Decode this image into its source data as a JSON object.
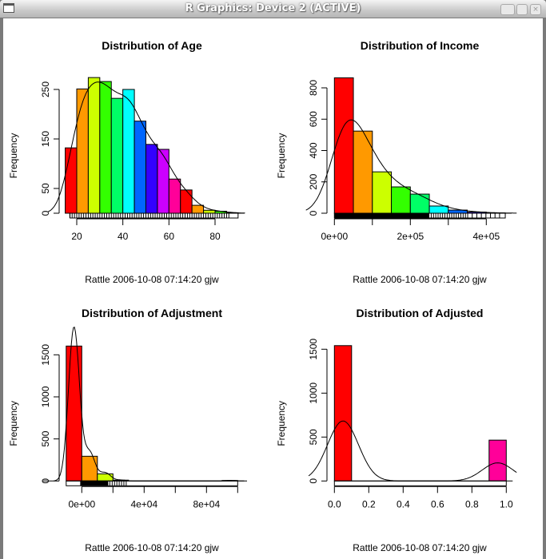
{
  "window": {
    "title": "R Graphics: Device 2 (ACTIVE)"
  },
  "footer": "Rattle 2006-10-08 07:14:20 gjw",
  "palette": [
    "#FF0000",
    "#FF9900",
    "#CCFF00",
    "#33FF00",
    "#00FF66",
    "#00FFFF",
    "#0066FF",
    "#3300FF",
    "#CC00FF",
    "#FF0099"
  ],
  "chart_data": [
    {
      "type": "bar",
      "title": "Distribution of Age",
      "ylabel": "Frequency",
      "xlabel": "",
      "bin_edges": [
        15,
        20,
        25,
        30,
        35,
        40,
        45,
        50,
        55,
        60,
        65,
        70,
        75,
        80,
        85,
        90
      ],
      "values": [
        132,
        251,
        274,
        266,
        232,
        250,
        186,
        139,
        129,
        69,
        47,
        16,
        6,
        4,
        1
      ],
      "xticks": [
        20,
        40,
        60,
        80
      ],
      "xtick_labels": [
        "20",
        "40",
        "60",
        "80"
      ],
      "yticks": [
        0,
        50,
        150,
        250
      ],
      "ytick_labels": [
        "0",
        "50",
        "150",
        "250"
      ],
      "ylim": [
        0,
        280
      ],
      "density_curve": true,
      "rug": true
    },
    {
      "type": "bar",
      "title": "Distribution of Income",
      "ylabel": "Frequency",
      "xlabel": "",
      "bin_edges": [
        0,
        50000,
        100000,
        150000,
        200000,
        250000,
        300000,
        350000,
        400000,
        450000
      ],
      "values": [
        864,
        524,
        264,
        168,
        122,
        46,
        20,
        7,
        2
      ],
      "xticks": [
        0,
        100000,
        200000,
        300000,
        400000
      ],
      "xtick_labels": [
        "0e+00",
        "",
        "2e+05",
        "",
        "4e+05"
      ],
      "yticks": [
        0,
        200,
        400,
        600,
        800
      ],
      "ytick_labels": [
        "0",
        "200",
        "400",
        "600",
        "800"
      ],
      "ylim": [
        0,
        870
      ],
      "density_curve": true,
      "rug": true
    },
    {
      "type": "bar",
      "title": "Distribution of Adjustment",
      "ylabel": "Frequency",
      "xlabel": "",
      "bin_edges": [
        -10000,
        0,
        10000,
        20000,
        30000,
        40000,
        50000,
        60000,
        70000,
        80000,
        90000,
        100000
      ],
      "values": [
        1604,
        294,
        85,
        10,
        0,
        0,
        0,
        0,
        0,
        0,
        6
      ],
      "xticks": [
        0,
        20000,
        40000,
        60000,
        80000,
        100000
      ],
      "xtick_labels": [
        "0e+00",
        "",
        "4e+04",
        "",
        "8e+04",
        ""
      ],
      "yticks": [
        0,
        500,
        1000,
        1500
      ],
      "ytick_labels": [
        "0",
        "500",
        "1000",
        "1500"
      ],
      "ylim": [
        0,
        1610
      ],
      "density_curve": true,
      "rug": true
    },
    {
      "type": "bar",
      "title": "Distribution of Adjusted",
      "ylabel": "Frequency",
      "xlabel": "",
      "bin_edges": [
        0,
        0.1,
        0.2,
        0.3,
        0.4,
        0.5,
        0.6,
        0.7,
        0.8,
        0.9,
        1.0
      ],
      "values": [
        1541,
        0,
        0,
        0,
        0,
        0,
        0,
        0,
        0,
        465
      ],
      "xticks": [
        0,
        0.2,
        0.4,
        0.6,
        0.8,
        1.0
      ],
      "xtick_labels": [
        "0.0",
        "0.2",
        "0.4",
        "0.6",
        "0.8",
        "1.0"
      ],
      "yticks": [
        0,
        500,
        1000,
        1500
      ],
      "ytick_labels": [
        "0",
        "500",
        "1000",
        "1500"
      ],
      "ylim": [
        0,
        1550
      ],
      "density_curve": true,
      "rug": true
    }
  ]
}
